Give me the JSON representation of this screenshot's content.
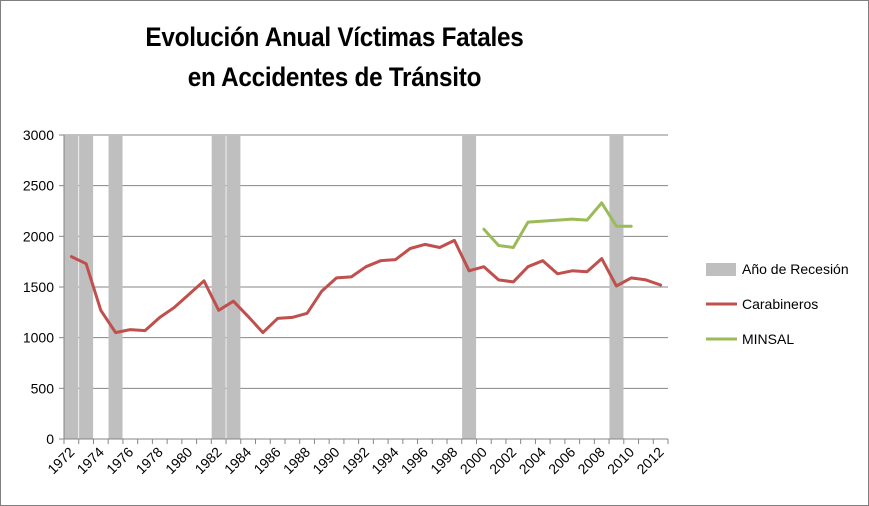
{
  "chart_data": {
    "type": "line",
    "title_line1": "Evolución Anual Víctimas Fatales",
    "title_line2": "en Accidentes de Tránsito",
    "ylim": [
      0,
      3000
    ],
    "yticks": [
      "0",
      "500",
      "1000",
      "1500",
      "2000",
      "2500",
      "3000"
    ],
    "xticks": [
      "1972",
      "1974",
      "1976",
      "1978",
      "1980",
      "1982",
      "1984",
      "1986",
      "1988",
      "1990",
      "1992",
      "1994",
      "1996",
      "1998",
      "2000",
      "2002",
      "2004",
      "2006",
      "2008",
      "2010",
      "2012"
    ],
    "x_years": [
      1972,
      1973,
      1974,
      1975,
      1976,
      1977,
      1978,
      1979,
      1980,
      1981,
      1982,
      1983,
      1984,
      1985,
      1986,
      1987,
      1988,
      1989,
      1990,
      1991,
      1992,
      1993,
      1994,
      1995,
      1996,
      1997,
      1998,
      1999,
      2000,
      2001,
      2002,
      2003,
      2004,
      2005,
      2006,
      2007,
      2008,
      2009,
      2010,
      2011,
      2012
    ],
    "recession_years": [
      1972,
      1973,
      1975,
      1982,
      1983,
      1999,
      2009
    ],
    "recession_color": "#bfbfbf",
    "series": [
      {
        "name": "Carabineros",
        "color": "#c0504d",
        "points": [
          [
            1972,
            1800
          ],
          [
            1973,
            1730
          ],
          [
            1974,
            1270
          ],
          [
            1975,
            1050
          ],
          [
            1976,
            1080
          ],
          [
            1977,
            1070
          ],
          [
            1978,
            1200
          ],
          [
            1979,
            1300
          ],
          [
            1980,
            1430
          ],
          [
            1981,
            1560
          ],
          [
            1982,
            1270
          ],
          [
            1983,
            1360
          ],
          [
            1984,
            1210
          ],
          [
            1985,
            1050
          ],
          [
            1986,
            1190
          ],
          [
            1987,
            1200
          ],
          [
            1988,
            1240
          ],
          [
            1989,
            1460
          ],
          [
            1990,
            1590
          ],
          [
            1991,
            1600
          ],
          [
            1992,
            1700
          ],
          [
            1993,
            1760
          ],
          [
            1994,
            1770
          ],
          [
            1995,
            1880
          ],
          [
            1996,
            1920
          ],
          [
            1997,
            1890
          ],
          [
            1998,
            1960
          ],
          [
            1999,
            1660
          ],
          [
            2000,
            1700
          ],
          [
            2001,
            1570
          ],
          [
            2002,
            1550
          ],
          [
            2003,
            1700
          ],
          [
            2004,
            1760
          ],
          [
            2005,
            1630
          ],
          [
            2006,
            1660
          ],
          [
            2007,
            1650
          ],
          [
            2008,
            1780
          ],
          [
            2009,
            1510
          ],
          [
            2010,
            1590
          ],
          [
            2011,
            1570
          ],
          [
            2012,
            1520
          ]
        ]
      },
      {
        "name": "MINSAL",
        "color": "#9bbb59",
        "points": [
          [
            2000,
            2070
          ],
          [
            2001,
            1910
          ],
          [
            2002,
            1890
          ],
          [
            2003,
            2140
          ],
          [
            2004,
            2150
          ],
          [
            2005,
            2160
          ],
          [
            2006,
            2170
          ],
          [
            2007,
            2160
          ],
          [
            2008,
            2330
          ],
          [
            2009,
            2100
          ],
          [
            2010,
            2100
          ]
        ]
      }
    ],
    "legend": [
      {
        "label": "Año de Recesión",
        "kind": "box",
        "color": "#bfbfbf"
      },
      {
        "label": "Carabineros",
        "kind": "line",
        "color": "#c0504d"
      },
      {
        "label": "MINSAL",
        "kind": "line",
        "color": "#9bbb59"
      }
    ],
    "legend_position": "right",
    "grid": true
  }
}
